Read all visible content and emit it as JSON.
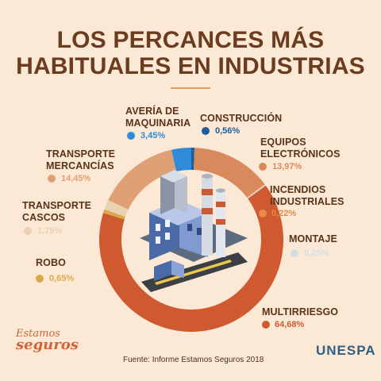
{
  "header": {
    "title_line_1": "LOS PERCANCES MÁS",
    "title_line_2": "HABITUALES EN INDUSTRIAS"
  },
  "chart_data": {
    "type": "pie",
    "categories": [
      "CONSTRUCCIÓN",
      "EQUIPOS ELECTRÓNICOS",
      "INCENDIOS INDUSTRIALES",
      "MONTAJE",
      "MULTIRRIESGO",
      "ROBO",
      "TRANSPORTE CASCOS",
      "TRANSPORTE MERCANCÍAS",
      "AVERÍA DE MAQUINARIA"
    ],
    "label_lines": [
      [
        "CONSTRUCCIÓN"
      ],
      [
        "EQUIPOS",
        "ELECTRÓNICOS"
      ],
      [
        "INCENDIOS",
        "INDUSTRIALES"
      ],
      [
        "MONTAJE"
      ],
      [
        "MULTIRRIESGO"
      ],
      [
        "ROBO"
      ],
      [
        "TRANSPORTE",
        "CASCOS"
      ],
      [
        "TRANSPORTE",
        "MERCANCÍAS"
      ],
      [
        "AVERÍA DE",
        "MAQUINARIA"
      ]
    ],
    "values": [
      0.56,
      13.97,
      0.22,
      0.25,
      64.68,
      0.65,
      1.75,
      14.45,
      3.45
    ],
    "value_labels": [
      "0,56%",
      "13,97%",
      "0,22%",
      "0,25%",
      "64,68%",
      "0,65%",
      "1,75%",
      "14,45%",
      "3,45%"
    ],
    "colors": [
      "#1c5f9c",
      "#d98a5c",
      "#e88a4a",
      "#d3dde6",
      "#d05a30",
      "#d9a84a",
      "#ead2b0",
      "#dfa074",
      "#2f8ad8"
    ],
    "chart_style": "donut",
    "start_direction": "top"
  },
  "footer": {
    "source": "Fuente: Informe Estamos Seguros 2018",
    "brand_line_1": "Estamos",
    "brand_line_2": "seguros",
    "logo": "UNESPA"
  }
}
